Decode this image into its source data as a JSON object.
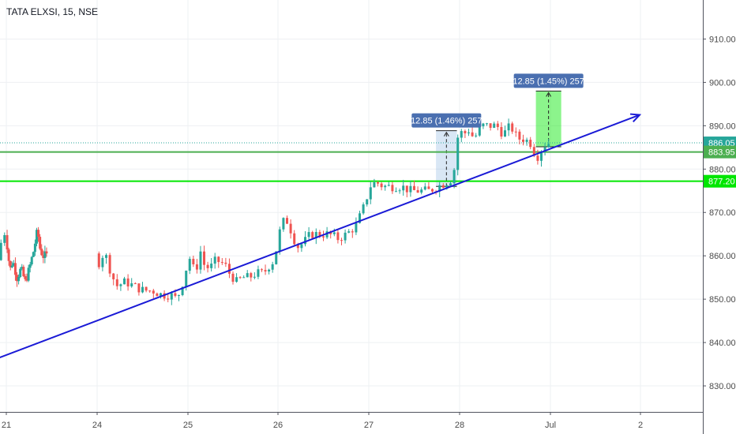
{
  "header": {
    "symbol_title": "TATA ELXSI, 15, NSE"
  },
  "theme": {
    "up": "#26a69a",
    "down": "#ef5350",
    "trend": "#1a1ad6",
    "green_line": "#4caf50",
    "lime_line": "#00e600",
    "grid": "#eef0f3",
    "axis_text": "#4a4a4a"
  },
  "chart_data": {
    "type": "candlestick",
    "title": "TATA ELXSI, 15, NSE",
    "x_ticks": [
      "21",
      "24",
      "25",
      "26",
      "27",
      "28",
      "Jul",
      "2"
    ],
    "y_ticks": [
      "830.00",
      "840.00",
      "850.00",
      "860.00",
      "870.00",
      "880.00",
      "890.00",
      "900.00",
      "910.00"
    ],
    "ylim": [
      824,
      919
    ],
    "grid": true,
    "price_labels": [
      {
        "name": "last",
        "value": 886.05,
        "text": "886.05",
        "color": "#26a69a",
        "style": "dotted"
      },
      {
        "name": "level-1",
        "value": 883.95,
        "text": "883.95",
        "color": "#4caf50",
        "style": "solid"
      },
      {
        "name": "level-2",
        "value": 877.2,
        "text": "877.20",
        "color": "#00e600",
        "style": "solid"
      }
    ],
    "trend_line": {
      "from": {
        "day": 20.28,
        "price": 831.5
      },
      "to": {
        "day": 29.0,
        "price": 892.5
      }
    },
    "measurements": [
      {
        "text": "12.85 (1.46%) 257",
        "from_day": 27.74,
        "to_day": 27.97,
        "low": 876.0,
        "high": 888.85
      },
      {
        "text": "12.85 (1.45%) 257",
        "from_day": 28.84,
        "to_day": 29.12,
        "low": 885.15,
        "high": 898.0
      }
    ],
    "anchors": [
      {
        "day": 20.0,
        "price": 859
      },
      {
        "day": 20.1,
        "price": 864
      },
      {
        "day": 20.2,
        "price": 862
      },
      {
        "day": 20.3,
        "price": 859
      },
      {
        "day": 20.4,
        "price": 860
      },
      {
        "day": 20.5,
        "price": 858
      },
      {
        "day": 20.6,
        "price": 856
      },
      {
        "day": 20.7,
        "price": 860
      },
      {
        "day": 20.8,
        "price": 857
      },
      {
        "day": 20.9,
        "price": 859
      },
      {
        "day": 21.0,
        "price": 864
      },
      {
        "day": 21.03,
        "price": 866
      },
      {
        "day": 21.08,
        "price": 860
      },
      {
        "day": 21.14,
        "price": 857
      },
      {
        "day": 21.2,
        "price": 859
      },
      {
        "day": 21.3,
        "price": 855
      },
      {
        "day": 21.4,
        "price": 857
      },
      {
        "day": 21.5,
        "price": 854
      },
      {
        "day": 21.6,
        "price": 857
      },
      {
        "day": 21.7,
        "price": 861
      },
      {
        "day": 21.8,
        "price": 866
      },
      {
        "day": 21.85,
        "price": 862
      },
      {
        "day": 21.93,
        "price": 860
      },
      {
        "day": 22.0,
        "price": 860
      },
      {
        "day": 24.0,
        "price": 860
      },
      {
        "day": 24.05,
        "price": 858
      },
      {
        "day": 24.12,
        "price": 861
      },
      {
        "day": 24.18,
        "price": 857
      },
      {
        "day": 24.25,
        "price": 853
      },
      {
        "day": 24.35,
        "price": 854
      },
      {
        "day": 24.45,
        "price": 853
      },
      {
        "day": 24.55,
        "price": 852
      },
      {
        "day": 24.65,
        "price": 852
      },
      {
        "day": 24.75,
        "price": 851
      },
      {
        "day": 24.85,
        "price": 851
      },
      {
        "day": 24.92,
        "price": 850
      },
      {
        "day": 25.0,
        "price": 855
      },
      {
        "day": 25.05,
        "price": 860
      },
      {
        "day": 25.12,
        "price": 856
      },
      {
        "day": 25.18,
        "price": 861
      },
      {
        "day": 25.22,
        "price": 858
      },
      {
        "day": 25.28,
        "price": 857
      },
      {
        "day": 25.35,
        "price": 859
      },
      {
        "day": 25.45,
        "price": 858
      },
      {
        "day": 25.5,
        "price": 856
      },
      {
        "day": 25.58,
        "price": 854
      },
      {
        "day": 25.65,
        "price": 855
      },
      {
        "day": 25.72,
        "price": 855
      },
      {
        "day": 25.8,
        "price": 856
      },
      {
        "day": 25.88,
        "price": 856
      },
      {
        "day": 25.95,
        "price": 858
      },
      {
        "day": 26.0,
        "price": 859
      },
      {
        "day": 26.05,
        "price": 865
      },
      {
        "day": 26.12,
        "price": 869
      },
      {
        "day": 26.18,
        "price": 866
      },
      {
        "day": 26.25,
        "price": 862
      },
      {
        "day": 26.32,
        "price": 863
      },
      {
        "day": 26.4,
        "price": 865
      },
      {
        "day": 26.5,
        "price": 865
      },
      {
        "day": 26.6,
        "price": 865
      },
      {
        "day": 26.7,
        "price": 864
      },
      {
        "day": 26.8,
        "price": 865
      },
      {
        "day": 26.9,
        "price": 867
      },
      {
        "day": 27.0,
        "price": 872
      },
      {
        "day": 27.05,
        "price": 876
      },
      {
        "day": 27.12,
        "price": 877
      },
      {
        "day": 27.2,
        "price": 876
      },
      {
        "day": 27.3,
        "price": 876
      },
      {
        "day": 27.4,
        "price": 876
      },
      {
        "day": 27.5,
        "price": 875
      },
      {
        "day": 27.6,
        "price": 875
      },
      {
        "day": 27.7,
        "price": 875
      },
      {
        "day": 27.8,
        "price": 876
      },
      {
        "day": 27.9,
        "price": 877
      },
      {
        "day": 27.97,
        "price": 878
      },
      {
        "day": 28.0,
        "price": 884
      },
      {
        "day": 28.03,
        "price": 889
      },
      {
        "day": 28.08,
        "price": 888
      },
      {
        "day": 28.14,
        "price": 889
      },
      {
        "day": 28.2,
        "price": 887
      },
      {
        "day": 28.28,
        "price": 890
      },
      {
        "day": 28.35,
        "price": 890
      },
      {
        "day": 28.45,
        "price": 890
      },
      {
        "day": 28.52,
        "price": 888
      },
      {
        "day": 28.6,
        "price": 890
      },
      {
        "day": 28.68,
        "price": 887
      },
      {
        "day": 28.75,
        "price": 887
      },
      {
        "day": 28.82,
        "price": 886
      },
      {
        "day": 28.86,
        "price": 884
      },
      {
        "day": 28.9,
        "price": 883
      },
      {
        "day": 28.95,
        "price": 885
      },
      {
        "day": 29.0,
        "price": 886
      }
    ]
  }
}
